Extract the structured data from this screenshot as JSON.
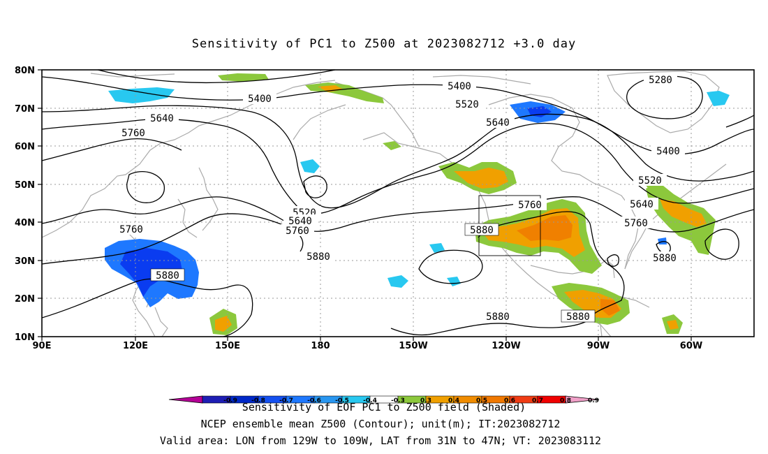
{
  "title": "Sensitivity of PC1 to Z500 at 2023082712 +3.0 day",
  "map": {
    "lon_range": [
      "90E",
      "50W"
    ],
    "lat_range": [
      "10N",
      "80N"
    ],
    "lat_labels": [
      "80N",
      "70N",
      "60N",
      "50N",
      "40N",
      "30N",
      "20N",
      "10N"
    ],
    "lon_labels": [
      "90E",
      "120E",
      "150E",
      "180",
      "150W",
      "120W",
      "90W",
      "60W"
    ],
    "gridlines": "dotted",
    "coastline_color": "#aaaaaa"
  },
  "contours": {
    "levels": [
      "5280",
      "5400",
      "5520",
      "5640",
      "5760",
      "5880"
    ],
    "labels": [
      {
        "text": "5400",
        "id": "c5400-a"
      },
      {
        "text": "5400",
        "id": "c5400-b"
      },
      {
        "text": "5400",
        "id": "c5400-c"
      },
      {
        "text": "5280",
        "id": "c5280"
      },
      {
        "text": "5520",
        "id": "c5520-a"
      },
      {
        "text": "5520",
        "id": "c5520-b"
      },
      {
        "text": "5520",
        "id": "c5520-c"
      },
      {
        "text": "5640",
        "id": "c5640-a"
      },
      {
        "text": "5640",
        "id": "c5640-b"
      },
      {
        "text": "5640",
        "id": "c5640-c"
      },
      {
        "text": "5640",
        "id": "c5640-d"
      },
      {
        "text": "5760",
        "id": "c5760-a"
      },
      {
        "text": "5760",
        "id": "c5760-b"
      },
      {
        "text": "5760",
        "id": "c5760-c"
      },
      {
        "text": "5760",
        "id": "c5760-d"
      },
      {
        "text": "5760",
        "id": "c5760-e"
      },
      {
        "text": "5880",
        "id": "c5880-a"
      },
      {
        "text": "5880",
        "id": "c5880-b"
      },
      {
        "text": "5880",
        "id": "c5880-c"
      },
      {
        "text": "5880",
        "id": "c5880-d"
      },
      {
        "text": "5880",
        "id": "c5880-e"
      },
      {
        "text": "5880",
        "id": "c5880-f"
      }
    ]
  },
  "shading_colors": {
    "neg_strong": "#0a3cf0",
    "neg_mid": "#1e78ff",
    "neg_light": "#28c8f0",
    "pos_light": "#8cc83c",
    "pos_mid": "#f0a000",
    "pos_strong": "#f08000"
  },
  "colorbar": {
    "ticks": [
      "-0.9",
      "-0.8",
      "-0.7",
      "-0.6",
      "-0.5",
      "-0.4",
      "-0.3",
      "0.3",
      "0.4",
      "0.5",
      "0.6",
      "0.7",
      "0.8",
      "0.9"
    ],
    "colors": [
      "#b40096",
      "#1e1eb4",
      "#0028c8",
      "#1450f0",
      "#1e78ff",
      "#2896f0",
      "#28c8f0",
      "#ffffff",
      "#8cc83c",
      "#f0a000",
      "#f08c00",
      "#f07800",
      "#f03c14",
      "#f00000",
      "#f0a0c8"
    ],
    "label": "Sensitivity of EOF PC1 to Z500 field (Shaded)"
  },
  "footer": {
    "line1": "NCEP ensemble mean Z500 (Contour); unit(m); IT:2023082712",
    "line2": "Valid area: LON from 129W to 109W, LAT from 31N to 47N; VT: 2023083112"
  }
}
